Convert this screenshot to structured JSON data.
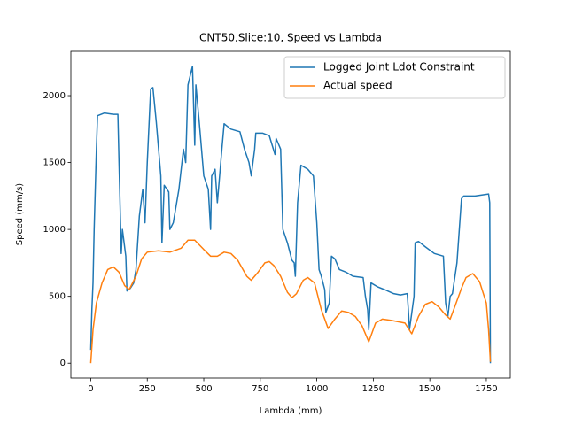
{
  "chart_data": {
    "type": "line",
    "title": "CNT50,Slice:10, Speed vs Lambda",
    "x_label": "Lambda (mm)",
    "y_label": "Speed (mm/s)",
    "xlim": [
      -88,
      1856
    ],
    "ylim": [
      -111,
      2331
    ],
    "xticks": [
      0,
      250,
      500,
      750,
      1000,
      1250,
      1500,
      1750
    ],
    "yticks": [
      0,
      500,
      1000,
      1500,
      2000
    ],
    "legend": "upper right",
    "series": [
      {
        "name": "Logged Joint Ldot Constraint",
        "color": "#1f77b4",
        "x": [
          0,
          5,
          10,
          15,
          25,
          30,
          60,
          100,
          120,
          125,
          135,
          140,
          155,
          160,
          175,
          190,
          200,
          215,
          230,
          240,
          250,
          265,
          275,
          290,
          310,
          315,
          325,
          345,
          350,
          365,
          390,
          410,
          420,
          430,
          450,
          460,
          465,
          480,
          500,
          520,
          530,
          535,
          550,
          560,
          580,
          590,
          620,
          660,
          680,
          700,
          710,
          725,
          730,
          760,
          790,
          815,
          820,
          840,
          850,
          870,
          890,
          900,
          905,
          915,
          930,
          960,
          985,
          1000,
          1010,
          1020,
          1035,
          1040,
          1055,
          1065,
          1080,
          1100,
          1130,
          1160,
          1205,
          1215,
          1225,
          1230,
          1240,
          1270,
          1300,
          1340,
          1370,
          1400,
          1405,
          1410,
          1430,
          1435,
          1450,
          1480,
          1520,
          1560,
          1570,
          1580,
          1590,
          1600,
          1620,
          1640,
          1650,
          1700,
          1760,
          1765,
          1768
        ],
        "values": [
          100,
          400,
          600,
          1000,
          1600,
          1850,
          1870,
          1860,
          1860,
          1500,
          820,
          1000,
          800,
          540,
          560,
          600,
          700,
          1100,
          1300,
          1050,
          1500,
          2050,
          2060,
          1800,
          1400,
          900,
          1330,
          1280,
          1000,
          1050,
          1300,
          1600,
          1500,
          2080,
          2220,
          1630,
          2080,
          1800,
          1400,
          1300,
          1000,
          1400,
          1450,
          1200,
          1600,
          1790,
          1750,
          1730,
          1600,
          1500,
          1400,
          1600,
          1720,
          1720,
          1700,
          1560,
          1680,
          1600,
          1000,
          900,
          770,
          750,
          650,
          1200,
          1480,
          1450,
          1400,
          1050,
          700,
          650,
          550,
          380,
          450,
          800,
          780,
          700,
          680,
          650,
          640,
          500,
          400,
          250,
          600,
          570,
          550,
          520,
          510,
          520,
          400,
          250,
          500,
          900,
          910,
          870,
          820,
          800,
          450,
          350,
          500,
          520,
          750,
          1230,
          1250,
          1250,
          1265,
          1200,
          0
        ]
      },
      {
        "name": "Actual speed",
        "color": "#ff7f0e",
        "x": [
          0,
          10,
          25,
          50,
          75,
          100,
          125,
          150,
          170,
          200,
          225,
          250,
          300,
          350,
          400,
          430,
          460,
          500,
          530,
          560,
          590,
          620,
          650,
          690,
          710,
          740,
          770,
          790,
          810,
          840,
          870,
          890,
          910,
          940,
          960,
          990,
          1020,
          1050,
          1080,
          1110,
          1140,
          1170,
          1200,
          1230,
          1260,
          1290,
          1330,
          1360,
          1390,
          1420,
          1450,
          1480,
          1510,
          1540,
          1570,
          1590,
          1610,
          1640,
          1660,
          1690,
          1720,
          1750,
          1760,
          1768
        ],
        "values": [
          0,
          250,
          450,
          600,
          700,
          720,
          680,
          580,
          550,
          650,
          780,
          830,
          840,
          830,
          860,
          920,
          920,
          850,
          800,
          800,
          830,
          820,
          770,
          650,
          620,
          680,
          750,
          760,
          730,
          650,
          530,
          490,
          520,
          620,
          640,
          600,
          400,
          260,
          330,
          390,
          380,
          350,
          280,
          160,
          300,
          330,
          320,
          310,
          300,
          220,
          350,
          440,
          460,
          420,
          360,
          330,
          420,
          560,
          640,
          670,
          610,
          450,
          250,
          10
        ]
      }
    ]
  }
}
